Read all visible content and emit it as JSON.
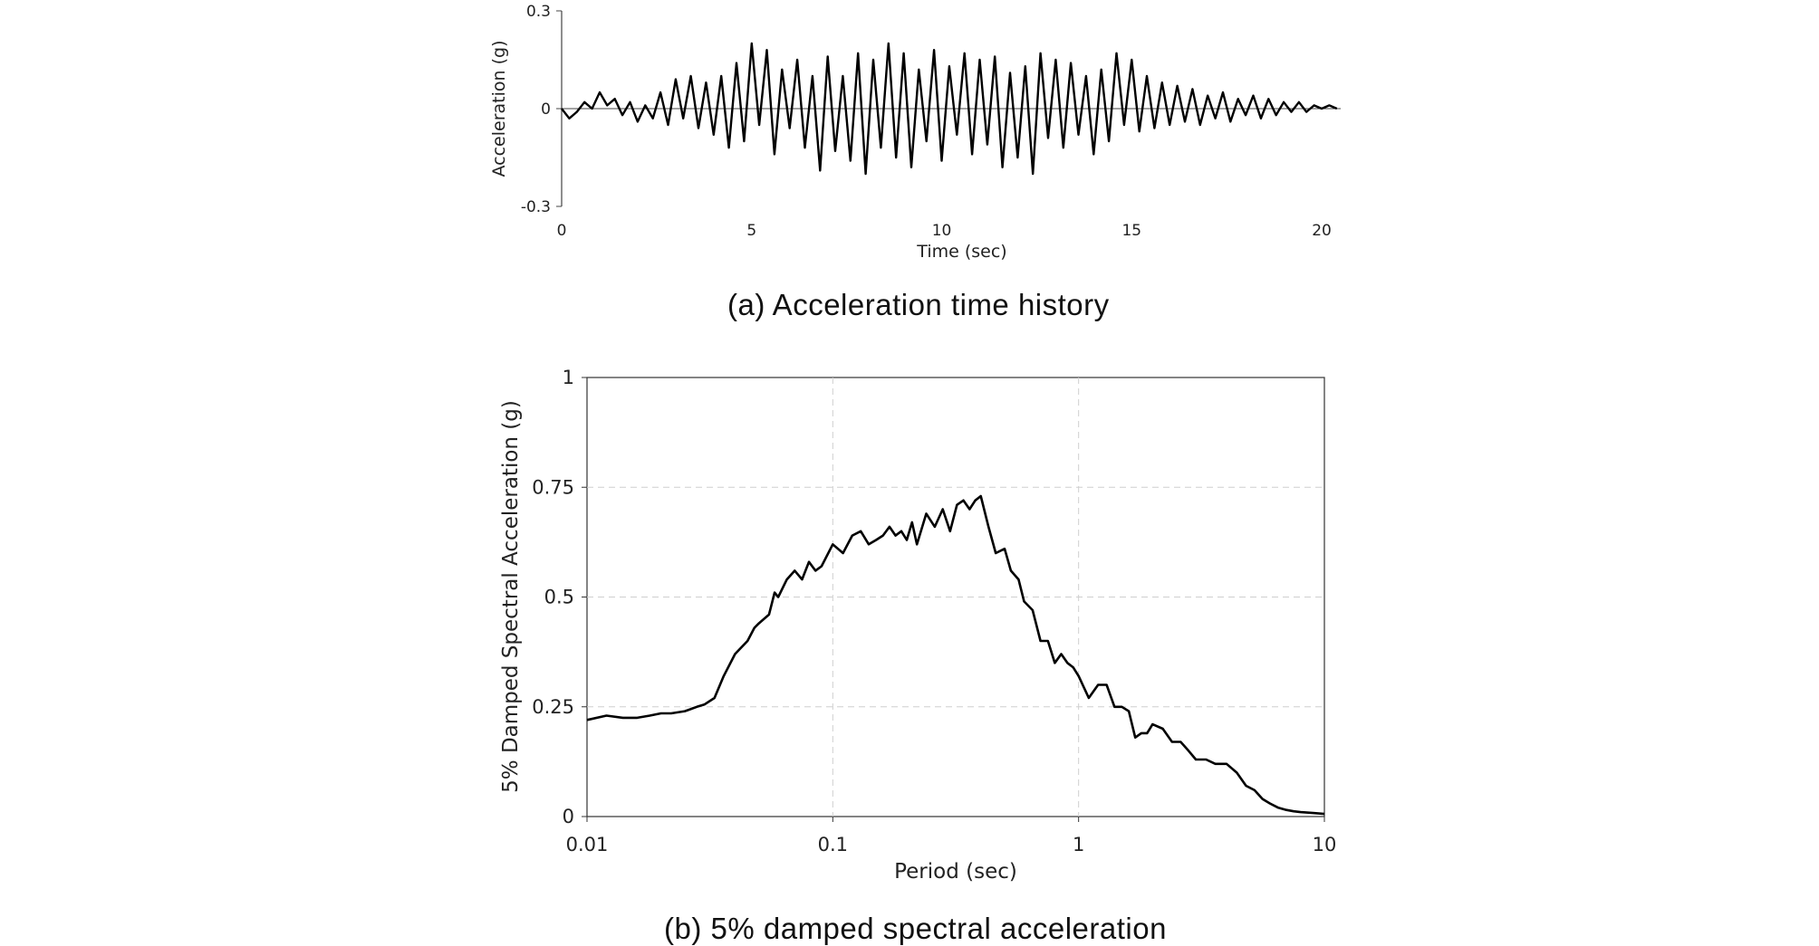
{
  "captions": {
    "a": "(a) Acceleration time history",
    "b": "(b) 5% damped spectral acceleration"
  },
  "chart_data": [
    {
      "type": "line",
      "xlabel": "Time (sec)",
      "ylabel": "Acceleration (g)",
      "xlim": [
        0,
        20.5
      ],
      "ylim": [
        -0.3,
        0.3
      ],
      "xticks": [
        "0",
        "5",
        "10",
        "15",
        "20"
      ],
      "yticks": [
        "-0.3",
        "0",
        "0.3"
      ],
      "grid": false,
      "series": [
        {
          "color": "#000000",
          "x": [
            0,
            0.2,
            0.4,
            0.6,
            0.8,
            1.0,
            1.2,
            1.4,
            1.6,
            1.8,
            2.0,
            2.2,
            2.4,
            2.6,
            2.8,
            3.0,
            3.2,
            3.4,
            3.6,
            3.8,
            4.0,
            4.2,
            4.4,
            4.6,
            4.8,
            5.0,
            5.2,
            5.4,
            5.6,
            5.8,
            6.0,
            6.2,
            6.4,
            6.6,
            6.8,
            7.0,
            7.2,
            7.4,
            7.6,
            7.8,
            8.0,
            8.2,
            8.4,
            8.6,
            8.8,
            9.0,
            9.2,
            9.4,
            9.6,
            9.8,
            10.0,
            10.2,
            10.4,
            10.6,
            10.8,
            11.0,
            11.2,
            11.4,
            11.6,
            11.8,
            12.0,
            12.2,
            12.4,
            12.6,
            12.8,
            13.0,
            13.2,
            13.4,
            13.6,
            13.8,
            14.0,
            14.2,
            14.4,
            14.6,
            14.8,
            15.0,
            15.2,
            15.4,
            15.6,
            15.8,
            16.0,
            16.2,
            16.4,
            16.6,
            16.8,
            17.0,
            17.2,
            17.4,
            17.6,
            17.8,
            18.0,
            18.2,
            18.4,
            18.6,
            18.8,
            19.0,
            19.2,
            19.4,
            19.6,
            19.8,
            20.0,
            20.2,
            20.4
          ],
          "y": [
            0,
            -0.03,
            -0.01,
            0.02,
            0.0,
            0.05,
            0.01,
            0.03,
            -0.02,
            0.02,
            -0.04,
            0.01,
            -0.03,
            0.05,
            -0.05,
            0.09,
            -0.03,
            0.1,
            -0.06,
            0.08,
            -0.08,
            0.1,
            -0.12,
            0.14,
            -0.1,
            0.2,
            -0.05,
            0.18,
            -0.14,
            0.12,
            -0.06,
            0.15,
            -0.12,
            0.1,
            -0.19,
            0.16,
            -0.13,
            0.1,
            -0.16,
            0.17,
            -0.2,
            0.15,
            -0.12,
            0.2,
            -0.15,
            0.17,
            -0.18,
            0.12,
            -0.1,
            0.18,
            -0.16,
            0.13,
            -0.08,
            0.17,
            -0.14,
            0.15,
            -0.11,
            0.16,
            -0.18,
            0.11,
            -0.15,
            0.13,
            -0.2,
            0.17,
            -0.09,
            0.15,
            -0.12,
            0.14,
            -0.08,
            0.1,
            -0.14,
            0.12,
            -0.1,
            0.17,
            -0.05,
            0.15,
            -0.07,
            0.1,
            -0.06,
            0.08,
            -0.05,
            0.07,
            -0.04,
            0.06,
            -0.05,
            0.04,
            -0.03,
            0.05,
            -0.04,
            0.03,
            -0.02,
            0.04,
            -0.03,
            0.03,
            -0.02,
            0.02,
            -0.01,
            0.02,
            -0.01,
            0.01,
            0.0,
            0.01,
            0.0
          ]
        }
      ]
    },
    {
      "type": "line",
      "xlabel": "Period (sec)",
      "ylabel": "5% Damped Spectral Acceleration (g)",
      "xscale": "log",
      "xlim": [
        0.01,
        10
      ],
      "ylim": [
        0,
        1
      ],
      "xticks": [
        "0.01",
        "0.1",
        "1",
        "10"
      ],
      "yticks": [
        "0",
        "0.25",
        "0.5",
        "0.75",
        "1"
      ],
      "grid": true,
      "series": [
        {
          "color": "#000000",
          "x": [
            0.01,
            0.012,
            0.014,
            0.016,
            0.018,
            0.02,
            0.022,
            0.025,
            0.028,
            0.03,
            0.033,
            0.036,
            0.04,
            0.045,
            0.048,
            0.05,
            0.055,
            0.058,
            0.06,
            0.065,
            0.07,
            0.075,
            0.08,
            0.085,
            0.09,
            0.1,
            0.11,
            0.12,
            0.13,
            0.14,
            0.15,
            0.16,
            0.17,
            0.18,
            0.19,
            0.2,
            0.21,
            0.22,
            0.24,
            0.26,
            0.28,
            0.3,
            0.32,
            0.34,
            0.36,
            0.38,
            0.4,
            0.43,
            0.46,
            0.5,
            0.53,
            0.57,
            0.6,
            0.65,
            0.7,
            0.75,
            0.8,
            0.85,
            0.9,
            0.95,
            1.0,
            1.1,
            1.2,
            1.3,
            1.4,
            1.5,
            1.6,
            1.7,
            1.8,
            1.9,
            2.0,
            2.2,
            2.4,
            2.6,
            2.8,
            3.0,
            3.3,
            3.6,
            4.0,
            4.4,
            4.8,
            5.2,
            5.6,
            6.0,
            6.5,
            7.0,
            7.5,
            8.0,
            9.0,
            10.0
          ],
          "y": [
            0.22,
            0.23,
            0.225,
            0.225,
            0.23,
            0.235,
            0.235,
            0.24,
            0.25,
            0.255,
            0.27,
            0.32,
            0.37,
            0.4,
            0.43,
            0.44,
            0.46,
            0.51,
            0.5,
            0.54,
            0.56,
            0.54,
            0.58,
            0.56,
            0.57,
            0.62,
            0.6,
            0.64,
            0.65,
            0.62,
            0.63,
            0.64,
            0.66,
            0.64,
            0.65,
            0.63,
            0.67,
            0.62,
            0.69,
            0.66,
            0.7,
            0.65,
            0.71,
            0.72,
            0.7,
            0.72,
            0.73,
            0.66,
            0.6,
            0.61,
            0.56,
            0.54,
            0.49,
            0.47,
            0.4,
            0.4,
            0.35,
            0.37,
            0.35,
            0.34,
            0.32,
            0.27,
            0.3,
            0.3,
            0.25,
            0.25,
            0.24,
            0.18,
            0.19,
            0.19,
            0.21,
            0.2,
            0.17,
            0.17,
            0.15,
            0.13,
            0.13,
            0.12,
            0.12,
            0.1,
            0.07,
            0.06,
            0.04,
            0.03,
            0.02,
            0.015,
            0.012,
            0.01,
            0.008,
            0.006
          ]
        }
      ]
    }
  ]
}
